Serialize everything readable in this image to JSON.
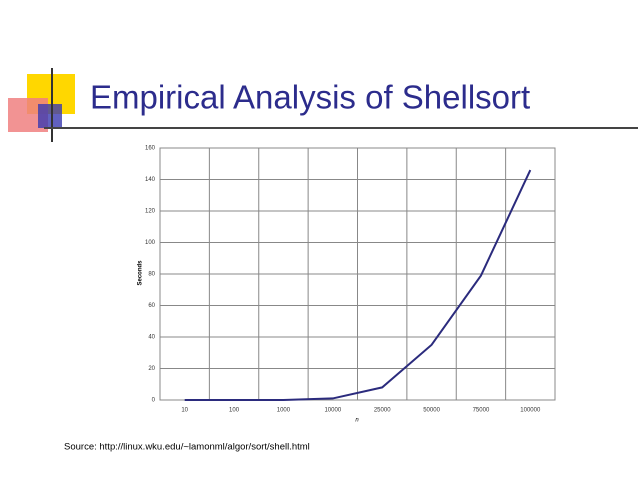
{
  "slide": {
    "title": "Empirical Analysis of Shellsort",
    "source": "Source: http://linux.wku.edu/~lamonml/algor/sort/shell.html"
  },
  "chart_data": {
    "type": "line",
    "x_label": "n",
    "y_label": "Seconds",
    "categories": [
      "10",
      "100",
      "1000",
      "10000",
      "25000",
      "50000",
      "75000",
      "100000"
    ],
    "values": [
      0,
      0,
      0,
      1,
      8,
      35,
      79,
      146
    ],
    "color": "#2b2b7d",
    "ylim": [
      0,
      160
    ],
    "yticks": [
      0,
      20,
      40,
      60,
      80,
      100,
      120,
      140,
      160
    ],
    "grid": true
  }
}
